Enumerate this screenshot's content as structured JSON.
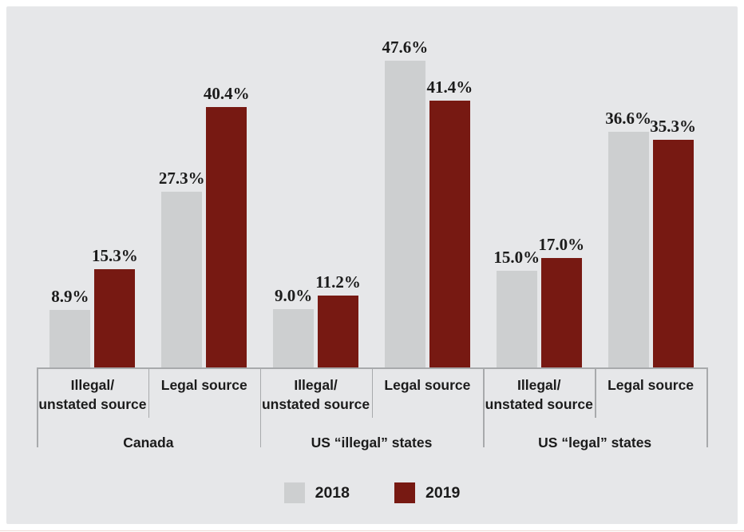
{
  "chart_data": {
    "type": "bar",
    "title": "",
    "regions": [
      {
        "label": "Canada"
      },
      {
        "label": "US “illegal” states"
      },
      {
        "label": "US “legal” states"
      }
    ],
    "subcategories": [
      {
        "lines": [
          "Illegal/",
          "unstated source"
        ]
      },
      {
        "lines": [
          "Legal source"
        ]
      }
    ],
    "categories": [
      "Canada - Illegal/unstated source",
      "Canada - Legal source",
      "US “illegal” states - Illegal/unstated source",
      "US “illegal” states - Legal source",
      "US “legal” states - Illegal/unstated source",
      "US “legal” states - Legal source"
    ],
    "series": [
      {
        "name": "2018",
        "color": "#cdcfd0",
        "values": [
          8.9,
          27.3,
          9.0,
          47.6,
          15.0,
          36.6
        ],
        "labels": [
          "8.9%",
          "27.3%",
          "9.0%",
          "47.6%",
          "15.0%",
          "36.6%"
        ]
      },
      {
        "name": "2019",
        "color": "#771912",
        "values": [
          15.3,
          40.4,
          11.2,
          41.4,
          17.0,
          35.3
        ],
        "labels": [
          "15.3%",
          "40.4%",
          "11.2%",
          "41.4%",
          "17.0%",
          "35.3%"
        ]
      }
    ],
    "ylim": [
      0,
      50
    ],
    "y_axis_visible": false,
    "grid": false,
    "legend_position": "bottom",
    "value_label_format": "{value}%",
    "colors": {
      "panel_background": "#e6e7e9",
      "axis_line": "#a8aaac",
      "text": "#1b1b1b",
      "bar_2018": "#cdcfd0",
      "bar_2019": "#771912"
    }
  }
}
